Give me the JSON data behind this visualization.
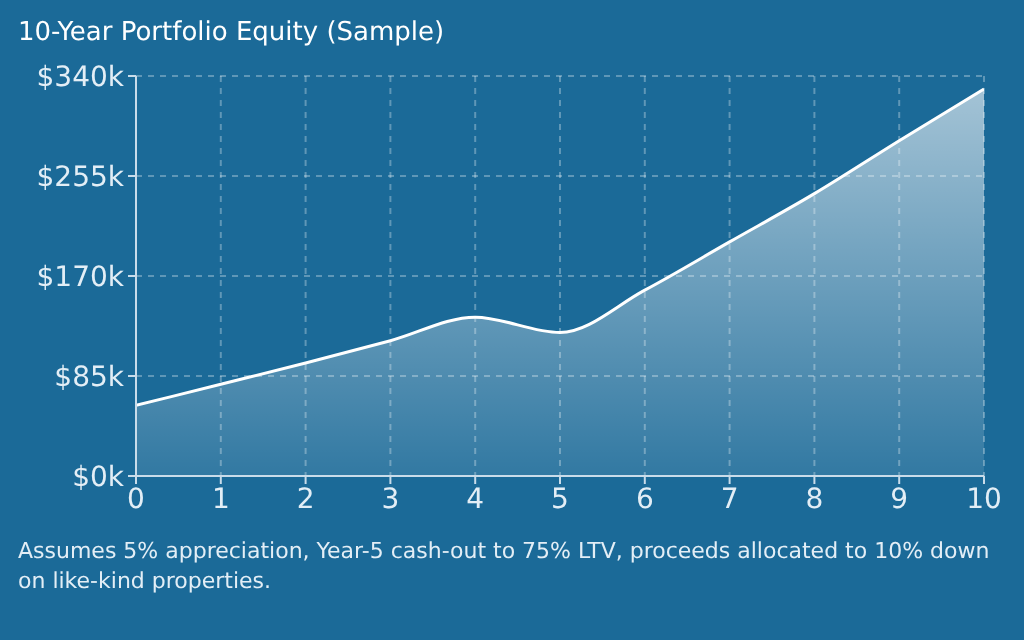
{
  "chart_data": {
    "type": "area",
    "title": "10-Year Portfolio Equity (Sample)",
    "x": [
      0,
      1,
      2,
      3,
      4,
      5,
      6,
      7,
      8,
      9,
      10
    ],
    "series": [
      {
        "color": "#ffffff",
        "values": [
          60,
          78,
          96,
          115,
          135,
          122,
          158,
          199,
          240,
          285,
          329
        ]
      }
    ],
    "xlim": [
      0,
      10
    ],
    "xticks": [
      0,
      1,
      2,
      3,
      4,
      5,
      6,
      7,
      8,
      9,
      10
    ],
    "ylim": [
      0,
      340
    ],
    "yticks": [
      {
        "value": 0,
        "label": "$0k"
      },
      {
        "value": 85,
        "label": "$85k"
      },
      {
        "value": 170,
        "label": "$170k"
      },
      {
        "value": 255,
        "label": "$255k"
      },
      {
        "value": 340,
        "label": "$340k"
      }
    ],
    "grid": true,
    "legend": false,
    "marker": "none",
    "line_style": "solid",
    "annotations": [
      "Assumes 5% appreciation, Year-5 cash-out to 75% LTV, proceeds allocated to 10% down on like-kind properties."
    ]
  }
}
